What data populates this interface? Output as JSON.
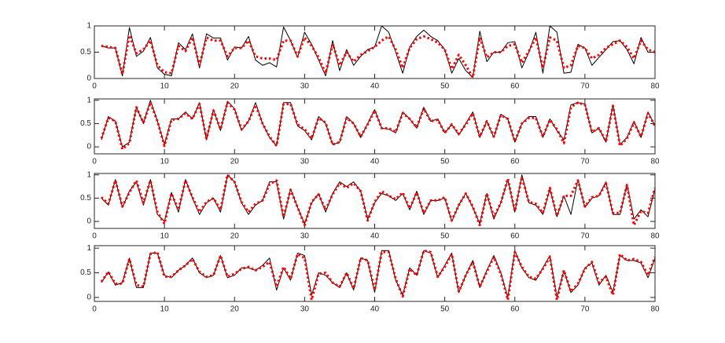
{
  "chart_data": [
    {
      "type": "line",
      "xlim": [
        0,
        80
      ],
      "xticks": [
        0,
        10,
        20,
        30,
        40,
        50,
        60,
        70,
        80
      ],
      "ylim": [
        0,
        1
      ],
      "yticks": [
        0,
        0.5,
        1
      ],
      "x": [
        1,
        2,
        3,
        4,
        5,
        6,
        7,
        8,
        9,
        10,
        11,
        12,
        13,
        14,
        15,
        16,
        17,
        18,
        19,
        20,
        21,
        22,
        23,
        24,
        25,
        26,
        27,
        28,
        29,
        30,
        31,
        32,
        33,
        34,
        35,
        36,
        37,
        38,
        39,
        40,
        41,
        42,
        43,
        44,
        45,
        46,
        47,
        48,
        49,
        50,
        51,
        52,
        53,
        54,
        55,
        56,
        57,
        58,
        59,
        60,
        61,
        62,
        63,
        64,
        65,
        66,
        67,
        68,
        69,
        70,
        71,
        72,
        73,
        74,
        75,
        76,
        77,
        78,
        79,
        80
      ],
      "series": [
        {
          "color": "#000000",
          "style": "solid",
          "values": [
            0.62,
            0.58,
            0.58,
            0.05,
            0.97,
            0.42,
            0.52,
            0.78,
            0.2,
            0.08,
            0.05,
            0.68,
            0.55,
            0.85,
            0.2,
            0.85,
            0.77,
            0.77,
            0.35,
            0.6,
            0.58,
            0.8,
            0.35,
            0.25,
            0.3,
            0.22,
            0.98,
            0.72,
            0.4,
            0.88,
            0.65,
            0.35,
            0.05,
            0.72,
            0.15,
            0.55,
            0.25,
            0.42,
            0.55,
            0.6,
            1.0,
            0.88,
            0.5,
            0.1,
            0.6,
            0.8,
            0.92,
            0.8,
            0.72,
            0.55,
            0.1,
            0.38,
            0.15,
            0.02,
            0.9,
            0.32,
            0.5,
            0.5,
            0.68,
            0.7,
            0.2,
            0.5,
            0.88,
            0.1,
            1.0,
            0.88,
            0.1,
            0.12,
            0.65,
            0.58,
            0.25,
            0.4,
            0.55,
            0.7,
            0.72,
            0.55,
            0.28,
            0.78,
            0.5,
            0.5
          ]
        },
        {
          "color": "#ff0000",
          "style": "dotted",
          "values": [
            0.62,
            0.6,
            0.58,
            0.08,
            0.82,
            0.48,
            0.55,
            0.72,
            0.25,
            0.12,
            0.1,
            0.62,
            0.52,
            0.78,
            0.25,
            0.78,
            0.72,
            0.72,
            0.42,
            0.58,
            0.58,
            0.72,
            0.42,
            0.38,
            0.38,
            0.35,
            0.72,
            0.72,
            0.42,
            0.78,
            0.62,
            0.4,
            0.1,
            0.65,
            0.25,
            0.5,
            0.32,
            0.45,
            0.52,
            0.6,
            0.72,
            0.8,
            0.55,
            0.2,
            0.58,
            0.75,
            0.8,
            0.75,
            0.68,
            0.55,
            0.18,
            0.45,
            0.25,
            0.02,
            0.78,
            0.4,
            0.5,
            0.5,
            0.62,
            0.65,
            0.3,
            0.52,
            0.78,
            0.2,
            0.78,
            0.72,
            0.2,
            0.25,
            0.62,
            0.58,
            0.38,
            0.45,
            0.58,
            0.65,
            0.72,
            0.6,
            0.38,
            0.72,
            0.55,
            0.5
          ]
        }
      ]
    },
    {
      "type": "line",
      "xlim": [
        0,
        80
      ],
      "xticks": [
        0,
        10,
        20,
        30,
        40,
        50,
        60,
        70,
        80
      ],
      "ylim": [
        -0.15,
        1.03
      ],
      "yticks": [
        0,
        0.5,
        1
      ],
      "x": [
        1,
        2,
        3,
        4,
        5,
        6,
        7,
        8,
        9,
        10,
        11,
        12,
        13,
        14,
        15,
        16,
        17,
        18,
        19,
        20,
        21,
        22,
        23,
        24,
        25,
        26,
        27,
        28,
        29,
        30,
        31,
        32,
        33,
        34,
        35,
        36,
        37,
        38,
        39,
        40,
        41,
        42,
        43,
        44,
        45,
        46,
        47,
        48,
        49,
        50,
        51,
        52,
        53,
        54,
        55,
        56,
        57,
        58,
        59,
        60,
        61,
        62,
        63,
        64,
        65,
        66,
        67,
        68,
        69,
        70,
        71,
        72,
        73,
        74,
        75,
        76,
        77,
        78,
        79,
        80
      ],
      "series": [
        {
          "color": "#000000",
          "style": "solid",
          "values": [
            0.15,
            0.65,
            0.55,
            0.0,
            0.1,
            0.85,
            0.5,
            1.0,
            0.55,
            0.05,
            0.6,
            0.6,
            0.75,
            0.6,
            0.95,
            0.15,
            0.8,
            0.35,
            0.98,
            0.82,
            0.35,
            0.55,
            0.95,
            0.5,
            0.2,
            0.02,
            0.95,
            0.95,
            0.45,
            0.35,
            0.15,
            0.65,
            0.5,
            0.05,
            0.1,
            0.65,
            0.5,
            0.2,
            0.5,
            0.8,
            0.4,
            0.38,
            0.3,
            0.75,
            0.6,
            0.4,
            0.85,
            0.55,
            0.6,
            0.3,
            0.48,
            0.25,
            0.5,
            0.75,
            0.2,
            0.55,
            0.2,
            0.7,
            0.6,
            0.1,
            0.5,
            0.65,
            0.65,
            0.2,
            0.6,
            0.35,
            0.15,
            0.9,
            0.95,
            0.92,
            0.3,
            0.4,
            0.1,
            0.9,
            0.05,
            0.2,
            0.55,
            0.2,
            0.75,
            0.45
          ]
        },
        {
          "color": "#ff0000",
          "style": "dotted",
          "values": [
            0.18,
            0.62,
            0.55,
            -0.05,
            0.08,
            0.85,
            0.52,
            0.95,
            0.55,
            0.02,
            0.58,
            0.6,
            0.72,
            0.6,
            0.92,
            0.18,
            0.78,
            0.38,
            0.95,
            0.8,
            0.38,
            0.55,
            0.9,
            0.5,
            0.22,
            0.02,
            0.92,
            0.92,
            0.48,
            0.38,
            0.18,
            0.62,
            0.52,
            0.05,
            0.1,
            0.62,
            0.5,
            0.22,
            0.48,
            0.78,
            0.4,
            0.4,
            0.32,
            0.72,
            0.6,
            0.42,
            0.82,
            0.55,
            0.58,
            0.3,
            0.48,
            0.28,
            0.48,
            0.72,
            0.22,
            0.55,
            0.22,
            0.68,
            0.6,
            0.12,
            0.5,
            0.62,
            0.62,
            0.22,
            0.58,
            0.38,
            0.08,
            0.85,
            0.95,
            0.9,
            0.32,
            0.4,
            0.12,
            0.88,
            0.02,
            0.18,
            0.52,
            0.22,
            0.72,
            0.45
          ]
        }
      ]
    },
    {
      "type": "line",
      "xlim": [
        0,
        80
      ],
      "xticks": [
        0,
        10,
        20,
        30,
        40,
        50,
        60,
        70,
        80
      ],
      "ylim": [
        -0.15,
        1.03
      ],
      "yticks": [
        0,
        0.5,
        1
      ],
      "x": [
        1,
        2,
        3,
        4,
        5,
        6,
        7,
        8,
        9,
        10,
        11,
        12,
        13,
        14,
        15,
        16,
        17,
        18,
        19,
        20,
        21,
        22,
        23,
        24,
        25,
        26,
        27,
        28,
        29,
        30,
        31,
        32,
        33,
        34,
        35,
        36,
        37,
        38,
        39,
        40,
        41,
        42,
        43,
        44,
        45,
        46,
        47,
        48,
        49,
        50,
        51,
        52,
        53,
        54,
        55,
        56,
        57,
        58,
        59,
        60,
        61,
        62,
        63,
        64,
        65,
        66,
        67,
        68,
        69,
        70,
        71,
        72,
        73,
        74,
        75,
        76,
        77,
        78,
        79,
        80
      ],
      "series": [
        {
          "color": "#000000",
          "style": "solid",
          "values": [
            0.5,
            0.35,
            0.9,
            0.3,
            0.65,
            0.85,
            0.35,
            0.9,
            0.15,
            0.0,
            0.62,
            0.2,
            0.9,
            0.5,
            0.15,
            0.4,
            0.5,
            0.2,
            1.0,
            0.85,
            0.4,
            0.15,
            0.35,
            0.45,
            0.85,
            0.85,
            0.05,
            0.7,
            0.3,
            -0.05,
            0.4,
            0.6,
            0.2,
            0.6,
            0.85,
            0.75,
            0.85,
            0.65,
            0.05,
            0.4,
            0.6,
            0.55,
            0.45,
            0.6,
            0.25,
            0.65,
            0.15,
            0.45,
            0.45,
            0.5,
            0.0,
            0.35,
            0.6,
            0.3,
            -0.05,
            0.6,
            0.05,
            0.4,
            0.9,
            0.2,
            1.0,
            0.4,
            0.35,
            0.15,
            0.7,
            0.1,
            0.55,
            0.15,
            0.9,
            0.3,
            0.5,
            0.55,
            0.85,
            0.15,
            0.15,
            0.8,
            0.05,
            0.25,
            0.1,
            0.7
          ]
        },
        {
          "color": "#ff0000",
          "style": "dotted",
          "values": [
            0.52,
            0.38,
            0.88,
            0.32,
            0.62,
            0.88,
            0.4,
            0.88,
            0.2,
            -0.05,
            0.6,
            0.25,
            0.88,
            0.52,
            0.2,
            0.42,
            0.5,
            0.25,
            1.0,
            0.85,
            0.42,
            0.2,
            0.38,
            0.45,
            0.8,
            0.88,
            0.1,
            0.68,
            0.3,
            -0.08,
            0.42,
            0.58,
            0.25,
            0.58,
            0.82,
            0.72,
            0.82,
            0.65,
            0.02,
            0.42,
            0.65,
            0.55,
            0.48,
            0.62,
            0.28,
            0.62,
            0.18,
            0.45,
            0.45,
            0.52,
            0.02,
            0.35,
            0.6,
            0.32,
            -0.08,
            0.6,
            0.1,
            0.4,
            0.92,
            0.22,
            0.95,
            0.42,
            0.38,
            0.18,
            0.72,
            0.12,
            0.55,
            0.55,
            0.88,
            0.32,
            0.52,
            0.55,
            0.82,
            0.18,
            0.18,
            0.78,
            -0.08,
            0.22,
            0.18,
            0.72
          ]
        }
      ]
    },
    {
      "type": "line",
      "xlim": [
        0,
        80
      ],
      "xticks": [
        0,
        10,
        20,
        30,
        40,
        50,
        60,
        70,
        80
      ],
      "ylim": [
        -0.08,
        1.05
      ],
      "yticks": [
        0,
        0.5,
        1
      ],
      "x": [
        1,
        2,
        3,
        4,
        5,
        6,
        7,
        8,
        9,
        10,
        11,
        12,
        13,
        14,
        15,
        16,
        17,
        18,
        19,
        20,
        21,
        22,
        23,
        24,
        25,
        26,
        27,
        28,
        29,
        30,
        31,
        32,
        33,
        34,
        35,
        36,
        37,
        38,
        39,
        40,
        41,
        42,
        43,
        44,
        45,
        46,
        47,
        48,
        49,
        50,
        51,
        52,
        53,
        54,
        55,
        56,
        57,
        58,
        59,
        60,
        61,
        62,
        63,
        64,
        65,
        66,
        67,
        68,
        69,
        70,
        71,
        72,
        73,
        74,
        75,
        76,
        77,
        78,
        79,
        80
      ],
      "series": [
        {
          "color": "#000000",
          "style": "solid",
          "values": [
            0.3,
            0.52,
            0.25,
            0.3,
            0.8,
            0.2,
            0.2,
            0.9,
            0.9,
            0.45,
            0.4,
            0.55,
            0.65,
            0.8,
            0.5,
            0.4,
            0.45,
            0.85,
            0.4,
            0.45,
            0.6,
            0.6,
            0.55,
            0.65,
            0.8,
            0.15,
            0.6,
            0.35,
            0.9,
            0.85,
            0.05,
            0.5,
            0.45,
            0.3,
            0.2,
            0.5,
            0.15,
            0.8,
            0.75,
            0.1,
            0.95,
            0.95,
            0.35,
            0.05,
            0.6,
            0.45,
            0.95,
            0.9,
            0.4,
            0.65,
            0.9,
            0.1,
            0.45,
            0.75,
            0.2,
            0.55,
            0.85,
            0.5,
            0.0,
            0.95,
            0.6,
            0.4,
            0.35,
            0.6,
            0.85,
            0.0,
            0.55,
            0.1,
            0.25,
            0.6,
            0.7,
            0.25,
            0.45,
            0.1,
            0.85,
            0.75,
            0.75,
            0.7,
            0.4,
            0.8
          ]
        },
        {
          "color": "#ff0000",
          "style": "dotted",
          "values": [
            0.32,
            0.52,
            0.28,
            0.28,
            0.78,
            0.25,
            0.22,
            0.88,
            0.92,
            0.42,
            0.42,
            0.55,
            0.65,
            0.78,
            0.52,
            0.42,
            0.45,
            0.85,
            0.42,
            0.48,
            0.58,
            0.62,
            0.55,
            0.62,
            0.72,
            0.22,
            0.62,
            0.38,
            0.88,
            0.8,
            -0.05,
            0.48,
            0.5,
            0.3,
            0.22,
            0.5,
            0.18,
            0.8,
            0.75,
            0.15,
            0.92,
            0.92,
            0.38,
            0.02,
            0.58,
            0.45,
            0.95,
            0.92,
            0.42,
            0.62,
            0.88,
            0.12,
            0.45,
            0.72,
            0.22,
            0.52,
            0.82,
            0.48,
            -0.05,
            0.92,
            0.62,
            0.42,
            0.38,
            0.58,
            0.82,
            -0.05,
            0.55,
            0.12,
            0.28,
            0.58,
            0.72,
            0.3,
            0.42,
            0.05,
            0.88,
            0.75,
            0.78,
            0.72,
            0.45,
            0.82
          ]
        }
      ]
    }
  ]
}
